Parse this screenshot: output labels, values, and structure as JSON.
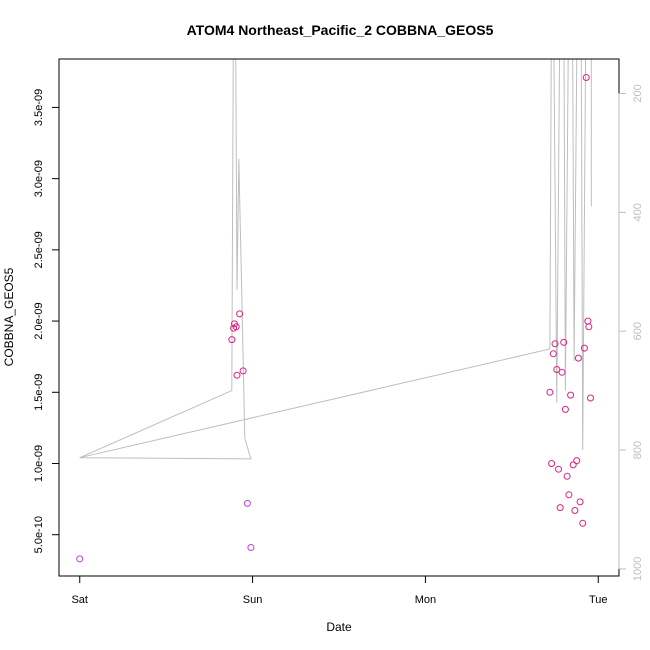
{
  "chart_data": {
    "type": "scatter",
    "title": "ATOM4 Northeast_Pacific_2 COBBNA_GEOS5",
    "xlabel": "Date",
    "ylabel": "COBBNA_GEOS5",
    "x_ticks": [
      {
        "x": 0.0,
        "label": "Sat"
      },
      {
        "x": 1.0,
        "label": "Sun"
      },
      {
        "x": 2.0,
        "label": "Mon"
      },
      {
        "x": 3.0,
        "label": "Tue"
      }
    ],
    "xlim": [
      -0.12,
      3.12
    ],
    "y_ticks": [
      {
        "y": 5e-10,
        "label": "5.0e-10"
      },
      {
        "y": 1e-09,
        "label": "1.0e-09"
      },
      {
        "y": 1.5e-09,
        "label": "1.5e-09"
      },
      {
        "y": 2e-09,
        "label": "2.0e-09"
      },
      {
        "y": 2.5e-09,
        "label": "2.5e-09"
      },
      {
        "y": 3e-09,
        "label": "3.0e-09"
      },
      {
        "y": 3.5e-09,
        "label": "3.5e-09"
      }
    ],
    "ylim": [
      2.1e-10,
      3.84e-09
    ],
    "y2_ticks": [
      {
        "y": 200,
        "label": "200"
      },
      {
        "y": 400,
        "label": "400"
      },
      {
        "y": 600,
        "label": "600"
      },
      {
        "y": 800,
        "label": "800"
      },
      {
        "y": 1000,
        "label": "1000"
      }
    ],
    "y2lim": [
      1012,
      142
    ],
    "y2_reversed": true,
    "colors": {
      "points": "#e0207f",
      "points_low": "#c040e0",
      "line": "#bebebe",
      "axis": "#000000",
      "right_axis": "#bebebe"
    },
    "points": [
      {
        "x": 0.0,
        "y": 3.3e-10
      },
      {
        "x": 0.88,
        "y": 1.87e-09
      },
      {
        "x": 0.89,
        "y": 1.95e-09
      },
      {
        "x": 0.895,
        "y": 1.98e-09
      },
      {
        "x": 0.905,
        "y": 1.96e-09
      },
      {
        "x": 0.91,
        "y": 1.62e-09
      },
      {
        "x": 0.925,
        "y": 2.05e-09
      },
      {
        "x": 0.945,
        "y": 1.65e-09
      },
      {
        "x": 0.97,
        "y": 7.2e-10
      },
      {
        "x": 0.99,
        "y": 4.1e-10
      },
      {
        "x": 2.72,
        "y": 1.5e-09
      },
      {
        "x": 2.73,
        "y": 1e-09
      },
      {
        "x": 2.74,
        "y": 1.77e-09
      },
      {
        "x": 2.75,
        "y": 1.84e-09
      },
      {
        "x": 2.76,
        "y": 1.66e-09
      },
      {
        "x": 2.77,
        "y": 9.6e-10
      },
      {
        "x": 2.78,
        "y": 6.9e-10
      },
      {
        "x": 2.79,
        "y": 1.64e-09
      },
      {
        "x": 2.8,
        "y": 1.85e-09
      },
      {
        "x": 2.81,
        "y": 1.38e-09
      },
      {
        "x": 2.82,
        "y": 9.1e-10
      },
      {
        "x": 2.83,
        "y": 7.8e-10
      },
      {
        "x": 2.84,
        "y": 1.48e-09
      },
      {
        "x": 2.855,
        "y": 9.9e-10
      },
      {
        "x": 2.865,
        "y": 6.7e-10
      },
      {
        "x": 2.875,
        "y": 1.02e-09
      },
      {
        "x": 2.885,
        "y": 1.74e-09
      },
      {
        "x": 2.895,
        "y": 7.3e-10
      },
      {
        "x": 2.91,
        "y": 5.8e-10
      },
      {
        "x": 2.92,
        "y": 1.81e-09
      },
      {
        "x": 2.93,
        "y": 3.71e-09
      },
      {
        "x": 2.94,
        "y": 2e-09
      },
      {
        "x": 2.945,
        "y": 1.96e-09
      },
      {
        "x": 2.955,
        "y": 1.46e-09
      }
    ],
    "line": [
      {
        "x": 0.0,
        "y2": 813
      },
      {
        "x": 0.88,
        "y2": 700
      },
      {
        "x": 0.89,
        "y2": 0
      },
      {
        "x": 0.9,
        "y2": 0
      },
      {
        "x": 0.91,
        "y2": 530
      },
      {
        "x": 0.92,
        "y2": 310
      },
      {
        "x": 0.935,
        "y2": 500
      },
      {
        "x": 0.955,
        "y2": 780
      },
      {
        "x": 0.99,
        "y2": 815
      },
      {
        "x": 0.0,
        "y2": 813
      },
      {
        "x": 2.72,
        "y2": 630
      },
      {
        "x": 2.73,
        "y2": 0
      },
      {
        "x": 2.74,
        "y2": 0
      },
      {
        "x": 2.76,
        "y2": 720
      },
      {
        "x": 2.78,
        "y2": 0
      },
      {
        "x": 2.8,
        "y2": 0
      },
      {
        "x": 2.81,
        "y2": 700
      },
      {
        "x": 2.83,
        "y2": 0
      },
      {
        "x": 2.85,
        "y2": 0
      },
      {
        "x": 2.86,
        "y2": 650
      },
      {
        "x": 2.88,
        "y2": 0
      },
      {
        "x": 2.9,
        "y2": 0
      },
      {
        "x": 2.91,
        "y2": 800
      },
      {
        "x": 2.93,
        "y2": 0
      },
      {
        "x": 2.96,
        "y2": 0
      },
      {
        "x": 2.96,
        "y2": 390
      }
    ]
  }
}
